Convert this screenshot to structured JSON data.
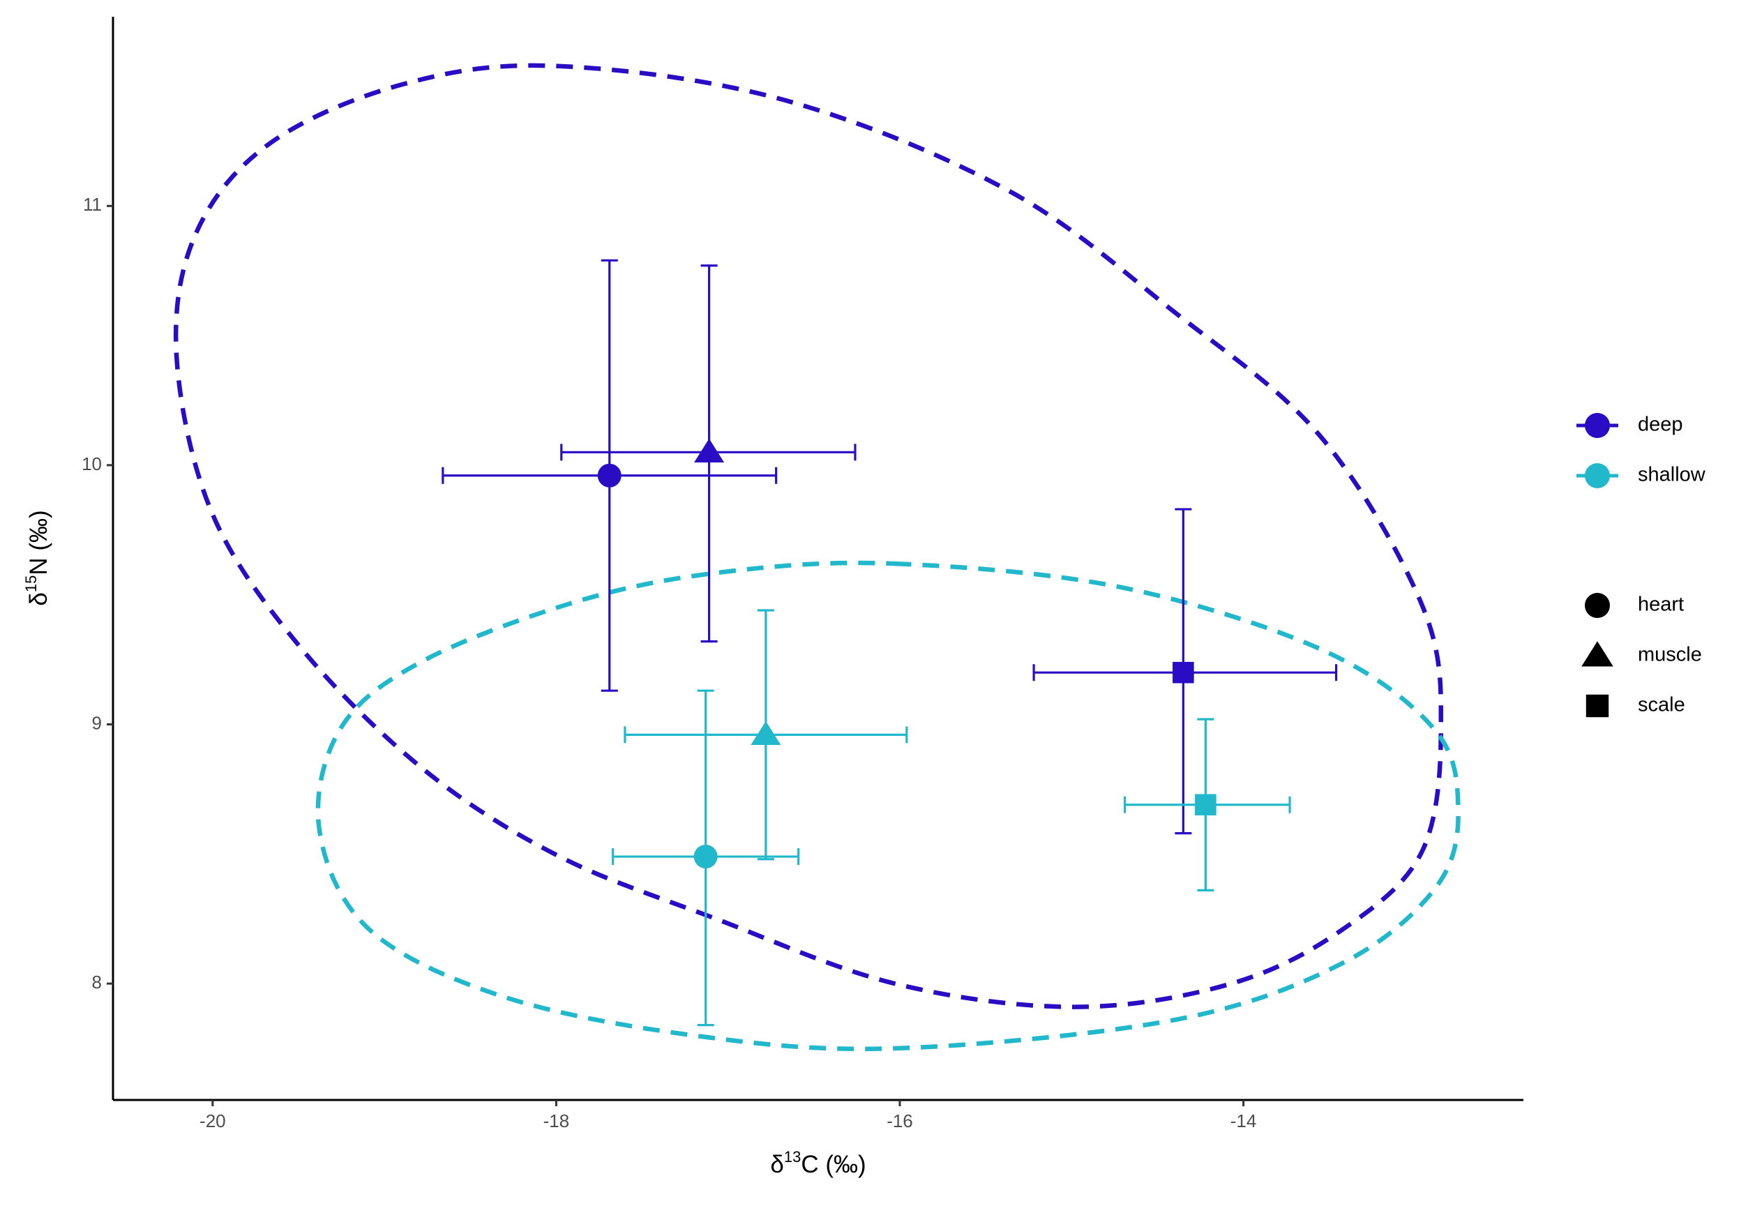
{
  "chart_data": {
    "type": "scatter",
    "x_label": {
      "prefix": "δ",
      "sup": "13",
      "suffix": "C (‰)"
    },
    "y_label": {
      "prefix": "δ",
      "sup": "15",
      "suffix": "N (‰)"
    },
    "xlim": [
      -20.58,
      -12.37
    ],
    "ylim": [
      7.551,
      11.73
    ],
    "xticks": [
      -20,
      -18,
      -16,
      -14
    ],
    "yticks": [
      8,
      9,
      10,
      11
    ],
    "shapes": {
      "names": [
        "heart",
        "muscle",
        "scale"
      ],
      "marks": [
        "circle",
        "triangle",
        "square"
      ]
    },
    "series": [
      {
        "name": "deep",
        "color": "#2a0cc4",
        "x": [
          -17.69,
          -17.11,
          -14.35
        ],
        "values": [
          9.96,
          10.05,
          9.2
        ],
        "x_low": [
          -18.66,
          -17.97,
          -15.22
        ],
        "x_high": [
          -16.72,
          -16.26,
          -13.46
        ],
        "y_low": [
          9.13,
          9.32,
          8.58
        ],
        "y_high": [
          10.79,
          10.77,
          9.83
        ],
        "ellipse": {
          "x": [
            -18.0,
            -16.68,
            -15.37,
            -14.4,
            -13.55,
            -12.96,
            -12.85,
            -12.96,
            -13.42,
            -14.07,
            -14.98,
            -16.03,
            -17.07,
            -17.98,
            -18.76,
            -19.48,
            -20.0,
            -20.21,
            -20.1,
            -19.67,
            -18.89
          ],
          "y": [
            11.54,
            11.41,
            11.06,
            10.59,
            10.11,
            9.46,
            8.99,
            8.51,
            8.21,
            8.0,
            7.91,
            8.0,
            8.25,
            8.49,
            8.82,
            9.29,
            9.81,
            10.42,
            10.89,
            11.24,
            11.47
          ]
        }
      },
      {
        "name": "shallow",
        "color": "#22b8cc",
        "x": [
          -17.13,
          -16.78,
          -14.22
        ],
        "values": [
          8.49,
          8.96,
          8.69
        ],
        "x_low": [
          -17.67,
          -17.6,
          -14.69
        ],
        "x_high": [
          -16.59,
          -15.96,
          -13.73
        ],
        "y_low": [
          7.84,
          8.48,
          8.36
        ],
        "y_high": [
          9.13,
          9.44,
          9.02
        ],
        "ellipse": {
          "x": [
            -16.03,
            -14.72,
            -13.55,
            -12.9,
            -12.75,
            -12.87,
            -13.42,
            -14.4,
            -16.03,
            -17.2,
            -18.31,
            -19.09,
            -19.38,
            -19.25,
            -18.76,
            -17.85,
            -17.0
          ],
          "y": [
            9.62,
            9.53,
            9.29,
            8.99,
            8.69,
            8.38,
            8.08,
            7.86,
            7.75,
            7.8,
            7.95,
            8.21,
            8.6,
            8.99,
            9.25,
            9.48,
            9.59
          ]
        }
      }
    ]
  }
}
